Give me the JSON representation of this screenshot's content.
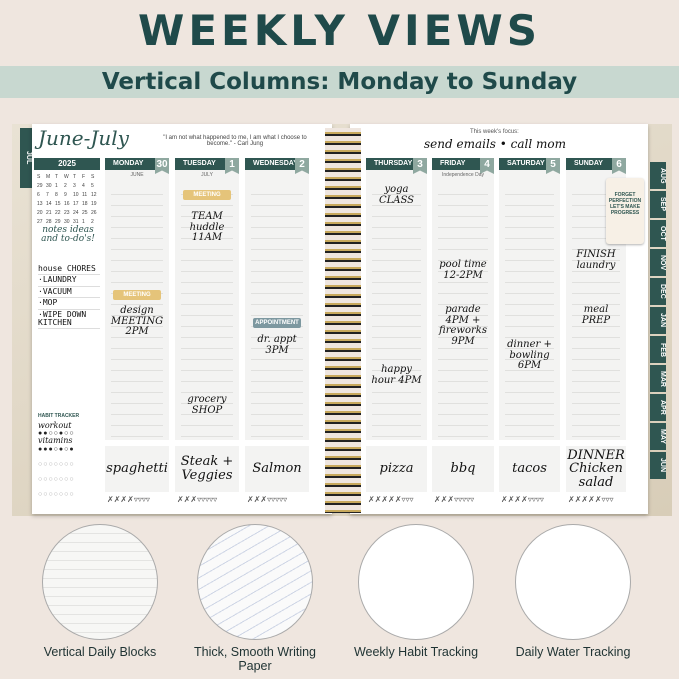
{
  "header": {
    "title": "WEEKLY VIEWS",
    "subtitle": "Vertical Columns: Monday to Sunday"
  },
  "left_page": {
    "month_title": "June-July",
    "quote": "\"I am not what happened to me, I am what I choose to become.\" - Carl Jung",
    "year": "2025",
    "tab": "JUL",
    "cal_days": [
      "S",
      "M",
      "T",
      "W",
      "T",
      "F",
      "S"
    ],
    "cal_dates": [
      "29",
      "30",
      "1",
      "2",
      "3",
      "4",
      "5",
      "6",
      "7",
      "8",
      "9",
      "10",
      "11",
      "12",
      "13",
      "14",
      "15",
      "16",
      "17",
      "18",
      "19",
      "20",
      "21",
      "22",
      "23",
      "24",
      "25",
      "26",
      "27",
      "28",
      "29",
      "30",
      "31",
      "1",
      "2"
    ],
    "notes_title": "notes ideas and to-do's!",
    "notes": [
      "house CHORES",
      "·LAUNDRY",
      "·VACUUM",
      "·MOP",
      "·WIPE DOWN KITCHEN"
    ],
    "habit_title": "HABIT TRACKER",
    "habits": [
      "workout",
      "vitamins"
    ]
  },
  "right_page": {
    "focus_label": "This week's focus:",
    "focus": "send emails • call mom",
    "sticker": "FORGET PERFECTION LET'S MAKE PROGRESS",
    "tabs": [
      "AUG",
      "SEP",
      "OCT",
      "NOV",
      "DEC",
      "JAN",
      "FEB",
      "MAR",
      "APR",
      "MAY",
      "JUN"
    ]
  },
  "days": [
    {
      "name": "MONDAY",
      "num": "30",
      "sub": "JUNE",
      "tag": "MEETING",
      "note": "design MEETING 2PM",
      "meal": "spaghetti",
      "water": "✗✗✗✗▿▿▿▿"
    },
    {
      "name": "TUESDAY",
      "num": "1",
      "sub": "JULY",
      "tag": "MEETING",
      "note": "TEAM huddle 11AM",
      "note2": "grocery SHOP",
      "meal": "Steak + Veggies",
      "water": "✗✗✗▿▿▿▿▿"
    },
    {
      "name": "WEDNESDAY",
      "num": "2",
      "tag": "APPOINTMENT",
      "note": "dr. appt 3PM",
      "meal": "Salmon",
      "water": "✗✗✗▿▿▿▿▿"
    },
    {
      "name": "THURSDAY",
      "num": "3",
      "note": "yoga CLASS",
      "note2": "happy hour 4PM",
      "meal": "pizza",
      "water": "✗✗✗✗✗▿▿▿"
    },
    {
      "name": "FRIDAY",
      "num": "4",
      "sub": "Independence Day",
      "note": "pool time 12-2PM",
      "note2": "parade 4PM + fireworks 9PM",
      "meal": "bbq",
      "water": "✗✗✗▿▿▿▿▿"
    },
    {
      "name": "SATURDAY",
      "num": "5",
      "note": "dinner + bowling 6PM",
      "meal": "tacos",
      "water": "✗✗✗✗▿▿▿▿"
    },
    {
      "name": "SUNDAY",
      "num": "6",
      "note": "FINISH laundry",
      "note2": "meal PREP",
      "meal": "DINNER Chicken salad",
      "water": "✗✗✗✗✗▿▿▿"
    }
  ],
  "features": [
    {
      "label": "Vertical Daily Blocks"
    },
    {
      "label": "Thick, Smooth Writing Paper"
    },
    {
      "label": "Weekly Habit Tracking"
    },
    {
      "label": "Daily Water Tracking"
    }
  ],
  "colors": {
    "title": "#1f4a4a",
    "banner": "#c8d8d0",
    "header_bar": "#2f5651",
    "meeting_tag": "#e5c47a",
    "appointment_tag": "#7d98a0",
    "spiral": "#c8a95c"
  }
}
